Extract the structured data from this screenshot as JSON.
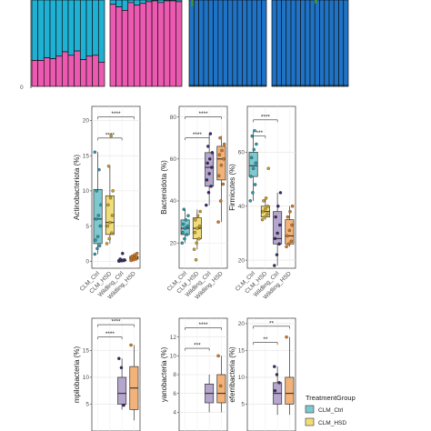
{
  "legend": {
    "title": "TreatmentGroup",
    "entries": [
      {
        "label": "CLM_Ctrl",
        "color": "#7ec8cf"
      },
      {
        "label": "CLM_HSD",
        "color": "#f1dc7a"
      }
    ]
  },
  "colors": {
    "CLM_Ctrl": "#7ec8cf",
    "CLM_HSD": "#f1dc7a",
    "Wildling_Ctrl": "#b4a6cc",
    "Wildling_HSD": "#f2b279",
    "stack_teal": "#1fb1d4",
    "stack_pink": "#ec59b1",
    "stack_blue": "#1e73c6",
    "stack_green": "#3d8f3d"
  },
  "top_panel": {
    "axis_tick": "0",
    "chart_data": {
      "type": "bar",
      "stacked": true,
      "groups": [
        {
          "name": "group1",
          "pink_fraction": [
            0.3,
            0.3,
            0.33,
            0.32,
            0.35,
            0.4,
            0.36,
            0.41,
            0.31,
            0.35,
            0.36,
            0.28
          ]
        },
        {
          "name": "group2",
          "pink_fraction": [
            0.95,
            0.92,
            0.88,
            0.97,
            0.94,
            0.96,
            0.98,
            0.99,
            0.97,
            0.99,
            0.99,
            0.98
          ]
        },
        {
          "name": "group3",
          "pink_fraction": [
            0.01,
            0.01,
            0.01,
            0.01,
            0.01,
            0.01,
            0.01,
            0.01,
            0.01,
            0.01,
            0.01,
            0.01,
            0.01,
            0.01,
            0.01,
            0.01
          ]
        },
        {
          "name": "group4",
          "pink_fraction": [
            0.01,
            0.01,
            0.01,
            0.01,
            0.01,
            0.01,
            0.01,
            0.01,
            0.01,
            0.01,
            0.01,
            0.01,
            0.01,
            0.01,
            0.01,
            0.01
          ]
        }
      ]
    }
  },
  "chart_data": [
    {
      "type": "box",
      "ylabel": "Actinobacteriota (%)",
      "ylim": [
        -1,
        22
      ],
      "yticks": [
        0,
        5,
        10,
        15,
        20
      ],
      "groups": [
        "CLM_Ctrl",
        "CLM_HSD",
        "Wildling_Ctrl",
        "Wildling_HSD"
      ],
      "boxes": [
        {
          "group": "CLM_Ctrl",
          "min": 1.0,
          "q1": 2.5,
          "median": 6.0,
          "q3": 10.2,
          "max": 15.5,
          "points": [
            1.0,
            1.8,
            2.2,
            3.0,
            3.5,
            5.0,
            6.0,
            6.5,
            8.0,
            10.0,
            13.0,
            15.5
          ]
        },
        {
          "group": "CLM_HSD",
          "min": 2.5,
          "q1": 3.8,
          "median": 5.5,
          "q3": 9.3,
          "max": 13.5,
          "points": [
            2.5,
            3.2,
            4.0,
            5.0,
            5.5,
            6.5,
            8.0,
            9.0,
            10.0,
            13.5,
            17.8
          ]
        },
        {
          "group": "Wildling_Ctrl",
          "min": 0.0,
          "q1": 0.05,
          "median": 0.1,
          "q3": 0.2,
          "max": 0.35,
          "points": [
            0.0,
            0.05,
            0.08,
            0.1,
            0.15,
            0.2,
            0.3,
            1.1
          ]
        },
        {
          "group": "Wildling_HSD",
          "min": 0.1,
          "q1": 0.3,
          "median": 0.45,
          "q3": 0.7,
          "max": 1.1,
          "points": [
            0.1,
            0.2,
            0.3,
            0.4,
            0.5,
            0.6,
            0.7,
            0.9,
            1.1
          ]
        }
      ],
      "significance": [
        {
          "from": 0,
          "to": 2,
          "y": 17.5,
          "label": "****"
        },
        {
          "from": 0,
          "to": 3,
          "y": 20.5,
          "label": "****"
        }
      ]
    },
    {
      "type": "box",
      "ylabel": "Bacteroidota (%)",
      "ylim": [
        8,
        85
      ],
      "yticks": [
        20,
        40,
        60,
        80
      ],
      "groups": [
        "CLM_Ctrl",
        "CLM_HSD",
        "Wildling_Ctrl",
        "Wildling_HSD"
      ],
      "boxes": [
        {
          "group": "CLM_Ctrl",
          "min": 20,
          "q1": 24,
          "median": 27,
          "q3": 31,
          "max": 36,
          "points": [
            20,
            22,
            24,
            25,
            27,
            28,
            29,
            31,
            33,
            36
          ]
        },
        {
          "group": "CLM_HSD",
          "min": 17,
          "q1": 22,
          "median": 27,
          "q3": 32,
          "max": 36,
          "points": [
            17,
            20,
            22,
            25,
            27,
            28,
            31,
            33,
            35,
            12
          ]
        },
        {
          "group": "Wildling_Ctrl",
          "min": 38,
          "q1": 47,
          "median": 56,
          "q3": 63,
          "max": 72,
          "points": [
            38,
            44,
            47,
            50,
            53,
            56,
            58,
            60,
            63,
            66,
            72
          ]
        },
        {
          "group": "Wildling_HSD",
          "min": 30,
          "q1": 50,
          "median": 60,
          "q3": 66,
          "max": 71,
          "points": [
            30,
            40,
            48,
            52,
            57,
            60,
            62,
            64,
            67,
            70
          ]
        }
      ],
      "significance": [
        {
          "from": 0,
          "to": 2,
          "y": 70,
          "label": "****"
        },
        {
          "from": 0,
          "to": 3,
          "y": 80,
          "label": "****"
        }
      ]
    },
    {
      "type": "box",
      "ylabel": "Firmicutes (%)",
      "ylim": [
        17,
        77
      ],
      "yticks": [
        20,
        40,
        60
      ],
      "groups": [
        "CLM_Ctrl",
        "CLM_HSD",
        "Wildling_Ctrl",
        "Wildling_HSD"
      ],
      "boxes": [
        {
          "group": "CLM_Ctrl",
          "min": 42,
          "q1": 51,
          "median": 55,
          "q3": 60,
          "max": 68,
          "points": [
            42,
            45,
            48,
            51,
            54,
            56,
            58,
            61,
            63,
            66,
            68
          ]
        },
        {
          "group": "CLM_HSD",
          "min": 35,
          "q1": 36,
          "median": 38,
          "q3": 40,
          "max": 43,
          "points": [
            35,
            36,
            37,
            38,
            39,
            40,
            42,
            43,
            54
          ]
        },
        {
          "group": "Wildling_Ctrl",
          "min": 18,
          "q1": 26,
          "median": 28,
          "q3": 38,
          "max": 45,
          "points": [
            18,
            22,
            26,
            28,
            30,
            33,
            36,
            40,
            45
          ]
        },
        {
          "group": "Wildling_HSD",
          "min": 25,
          "q1": 26,
          "median": 29,
          "q3": 35,
          "max": 40,
          "points": [
            25,
            26,
            27,
            29,
            31,
            33,
            36,
            38,
            40
          ]
        }
      ],
      "significance": [
        {
          "from": 0,
          "to": 1,
          "y": 66,
          "label": "***"
        },
        {
          "from": 0,
          "to": 2,
          "y": 72,
          "label": "****"
        }
      ]
    },
    {
      "type": "box",
      "ylabel": "mpilobacteria (%)",
      "ylim": [
        0,
        21
      ],
      "yticks": [
        5,
        10,
        15
      ],
      "groups": [
        "CLM_Ctrl",
        "CLM_HSD",
        "Wildling_Ctrl",
        "Wildling_HSD"
      ],
      "boxes": [
        {
          "group": "Wildling_Ctrl",
          "min": 4,
          "q1": 5,
          "median": 7,
          "q3": 10,
          "max": 13.5,
          "points": [
            13.5,
            11.8,
            4.8
          ]
        },
        {
          "group": "Wildling_HSD",
          "min": 2,
          "q1": 4,
          "median": 8,
          "q3": 12,
          "max": 16,
          "points": [
            16.0
          ]
        }
      ],
      "significance": [
        {
          "from": 0,
          "to": 2,
          "y": 17.5,
          "label": "****"
        },
        {
          "from": 0,
          "to": 3,
          "y": 19.8,
          "label": "****"
        }
      ]
    },
    {
      "type": "box",
      "ylabel": "yanobacteria (%)",
      "ylim": [
        2,
        14
      ],
      "yticks": [
        4,
        6,
        8,
        10,
        12
      ],
      "groups": [
        "CLM_Ctrl",
        "CLM_HSD",
        "Wildling_Ctrl",
        "Wildling_HSD"
      ],
      "boxes": [
        {
          "group": "Wildling_Ctrl",
          "min": 4,
          "q1": 5,
          "median": 6,
          "q3": 7,
          "max": 8,
          "points": []
        },
        {
          "group": "Wildling_HSD",
          "min": 4,
          "q1": 5,
          "median": 6,
          "q3": 8,
          "max": 10,
          "points": [
            10.0,
            6.8
          ]
        }
      ],
      "significance": [
        {
          "from": 0,
          "to": 2,
          "y": 10.8,
          "label": "***"
        },
        {
          "from": 0,
          "to": 3,
          "y": 13.0,
          "label": "****"
        }
      ]
    },
    {
      "type": "box",
      "ylabel": "eferribacteria (%)",
      "ylim": [
        0,
        21
      ],
      "yticks": [
        5,
        10,
        15,
        20
      ],
      "groups": [
        "CLM_Ctrl",
        "CLM_HSD",
        "Wildling_Ctrl",
        "Wildling_HSD"
      ],
      "boxes": [
        {
          "group": "Wildling_Ctrl",
          "min": 3,
          "q1": 5,
          "median": 7,
          "q3": 9,
          "max": 12,
          "points": [
            12.0,
            10.5,
            9.0,
            7.5
          ]
        },
        {
          "group": "Wildling_HSD",
          "min": 3,
          "q1": 5,
          "median": 7,
          "q3": 10,
          "max": 17.5,
          "points": [
            17.5
          ]
        }
      ],
      "significance": [
        {
          "from": 0,
          "to": 2,
          "y": 16.5,
          "label": "**"
        },
        {
          "from": 0,
          "to": 3,
          "y": 19.5,
          "label": "**"
        }
      ]
    }
  ]
}
